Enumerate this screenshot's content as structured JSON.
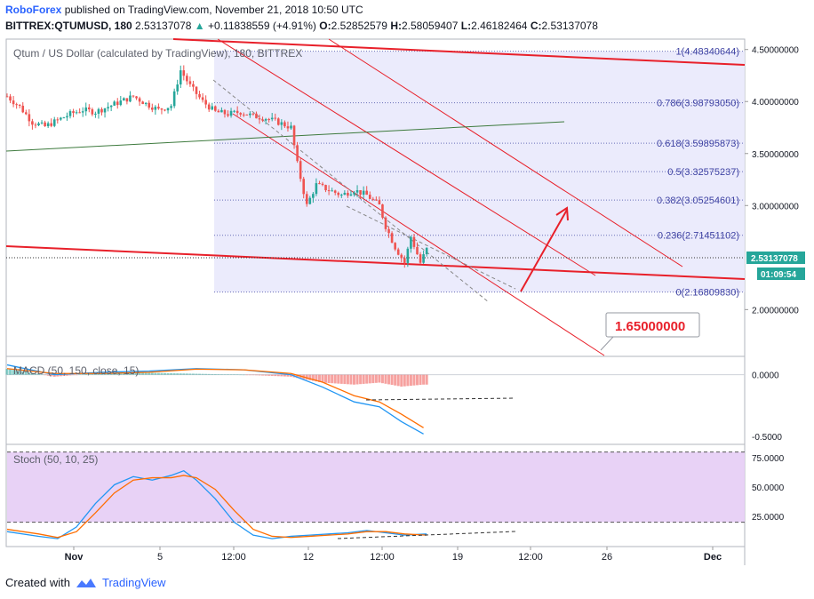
{
  "header": {
    "brand": "RoboForex",
    "published": "published on TradingView.com, November 21, 2018 10:50 UTC",
    "symbol": "BITTREX:QTUMUSD, 180",
    "last": "2.53137078",
    "change": "+0.11838559 (+4.91%)",
    "o_label": "O:",
    "o": "2.52852579",
    "h_label": "H:",
    "h": "2.58059407",
    "l_label": "L:",
    "l": "2.46182464",
    "c_label": "C:",
    "c": "2.53137078"
  },
  "colors": {
    "up": "#26a69a",
    "down": "#ef5350",
    "trend": "#e8202a",
    "green_line": "#3d7a3d",
    "fib_fill": "#e8e8fb",
    "stoch_fill": "#e5cdf5",
    "macd_blue": "#2196f3",
    "macd_orange": "#ff6d00"
  },
  "chart_data": [
    {
      "type": "candlestick",
      "title": "Qtum / US Dollar (calculated by TradingView), 180, BITTREX",
      "x_tick_labels": [
        "Nov",
        "5",
        "12:00",
        "12",
        "12:00",
        "19",
        "12:00",
        "26",
        "Dec"
      ],
      "y_tick_labels": [
        "4.50000000",
        "4.00000000",
        "3.50000000",
        "3.00000000",
        "2.00000000"
      ],
      "ylim": [
        1.55,
        4.6
      ],
      "current_price": "2.53137078",
      "countdown": "01:09:54",
      "target_label": "1.65000000",
      "fib_levels": [
        {
          "ratio": "1",
          "price": 4.48340644,
          "label": "1(4.48340644)"
        },
        {
          "ratio": "0.786",
          "price": 3.9879305,
          "label": "0.786(3.98793050)"
        },
        {
          "ratio": "0.618",
          "price": 3.59895873,
          "label": "0.618(3.59895873)"
        },
        {
          "ratio": "0.5",
          "price": 3.32575237,
          "label": "0.5(3.32575237)"
        },
        {
          "ratio": "0.382",
          "price": 3.05254601,
          "label": "0.382(3.05254601)"
        },
        {
          "ratio": "0.236",
          "price": 2.71451102,
          "label": "0.236(2.71451102)"
        },
        {
          "ratio": "0",
          "price": 2.1680983,
          "label": "0(2.16809830)"
        }
      ],
      "price_path": [
        [
          0,
          4.05
        ],
        [
          4,
          3.95
        ],
        [
          8,
          3.8
        ],
        [
          12,
          3.76
        ],
        [
          16,
          3.82
        ],
        [
          20,
          3.88
        ],
        [
          24,
          3.92
        ],
        [
          28,
          3.9
        ],
        [
          32,
          3.95
        ],
        [
          36,
          4.0
        ],
        [
          40,
          4.05
        ],
        [
          44,
          3.98
        ],
        [
          48,
          3.92
        ],
        [
          52,
          3.96
        ],
        [
          55,
          4.3
        ],
        [
          58,
          4.15
        ],
        [
          62,
          4.0
        ],
        [
          66,
          3.9
        ],
        [
          70,
          3.88
        ],
        [
          74,
          3.9
        ],
        [
          78,
          3.86
        ],
        [
          82,
          3.84
        ],
        [
          86,
          3.8
        ],
        [
          90,
          3.75
        ],
        [
          92,
          3.4
        ],
        [
          95,
          3.0
        ],
        [
          98,
          3.2
        ],
        [
          102,
          3.15
        ],
        [
          106,
          3.1
        ],
        [
          110,
          3.15
        ],
        [
          114,
          3.1
        ],
        [
          118,
          3.0
        ],
        [
          120,
          2.8
        ],
        [
          123,
          2.6
        ],
        [
          126,
          2.45
        ],
        [
          128,
          2.7
        ],
        [
          131,
          2.45
        ],
        [
          133,
          2.58
        ]
      ]
    },
    {
      "type": "line",
      "title": "MACD (50, 150, close, 15)",
      "y_tick_labels": [
        "0.0000",
        "-0.5000"
      ],
      "ylim": [
        -0.55,
        0.12
      ],
      "series": [
        {
          "values": [
            [
              0,
              0.08
            ],
            [
              15,
              0.0
            ],
            [
              30,
              0.02
            ],
            [
              45,
              0.03
            ],
            [
              60,
              0.05
            ],
            [
              75,
              0.04
            ],
            [
              90,
              0.0
            ],
            [
              100,
              -0.1
            ],
            [
              110,
              -0.22
            ],
            [
              118,
              -0.26
            ],
            [
              125,
              -0.38
            ],
            [
              132,
              -0.48
            ]
          ]
        },
        {
          "values": [
            [
              0,
              0.05
            ],
            [
              15,
              0.01
            ],
            [
              30,
              0.01
            ],
            [
              45,
              0.02
            ],
            [
              60,
              0.045
            ],
            [
              75,
              0.04
            ],
            [
              90,
              0.01
            ],
            [
              100,
              -0.06
            ],
            [
              110,
              -0.17
            ],
            [
              118,
              -0.22
            ],
            [
              125,
              -0.32
            ],
            [
              132,
              -0.43
            ]
          ]
        }
      ]
    },
    {
      "type": "line",
      "title": "Stoch (50, 10, 25)",
      "y_tick_labels": [
        "75.0000",
        "50.0000",
        "25.0000"
      ],
      "ylim": [
        0,
        85
      ],
      "series": [
        {
          "values": [
            [
              0,
              12
            ],
            [
              10,
              8
            ],
            [
              16,
              6
            ],
            [
              22,
              16
            ],
            [
              28,
              36
            ],
            [
              34,
              52
            ],
            [
              40,
              59
            ],
            [
              46,
              56
            ],
            [
              52,
              60
            ],
            [
              56,
              64
            ],
            [
              60,
              56
            ],
            [
              66,
              40
            ],
            [
              72,
              20
            ],
            [
              78,
              9
            ],
            [
              84,
              6
            ],
            [
              90,
              8
            ],
            [
              96,
              9
            ],
            [
              102,
              10
            ],
            [
              108,
              11
            ],
            [
              114,
              13
            ],
            [
              120,
              11
            ],
            [
              126,
              9
            ],
            [
              133,
              10
            ]
          ]
        },
        {
          "values": [
            [
              0,
              14
            ],
            [
              10,
              10
            ],
            [
              16,
              7
            ],
            [
              22,
              12
            ],
            [
              28,
              28
            ],
            [
              34,
              45
            ],
            [
              40,
              56
            ],
            [
              46,
              58
            ],
            [
              52,
              58
            ],
            [
              56,
              60
            ],
            [
              60,
              58
            ],
            [
              66,
              48
            ],
            [
              72,
              30
            ],
            [
              78,
              14
            ],
            [
              84,
              8
            ],
            [
              90,
              7
            ],
            [
              96,
              8
            ],
            [
              102,
              9
            ],
            [
              108,
              10
            ],
            [
              114,
              12
            ],
            [
              120,
              12
            ],
            [
              126,
              10
            ],
            [
              133,
              9
            ]
          ]
        }
      ]
    }
  ],
  "footer": {
    "created_with": "Created with",
    "brand": "TradingView"
  }
}
